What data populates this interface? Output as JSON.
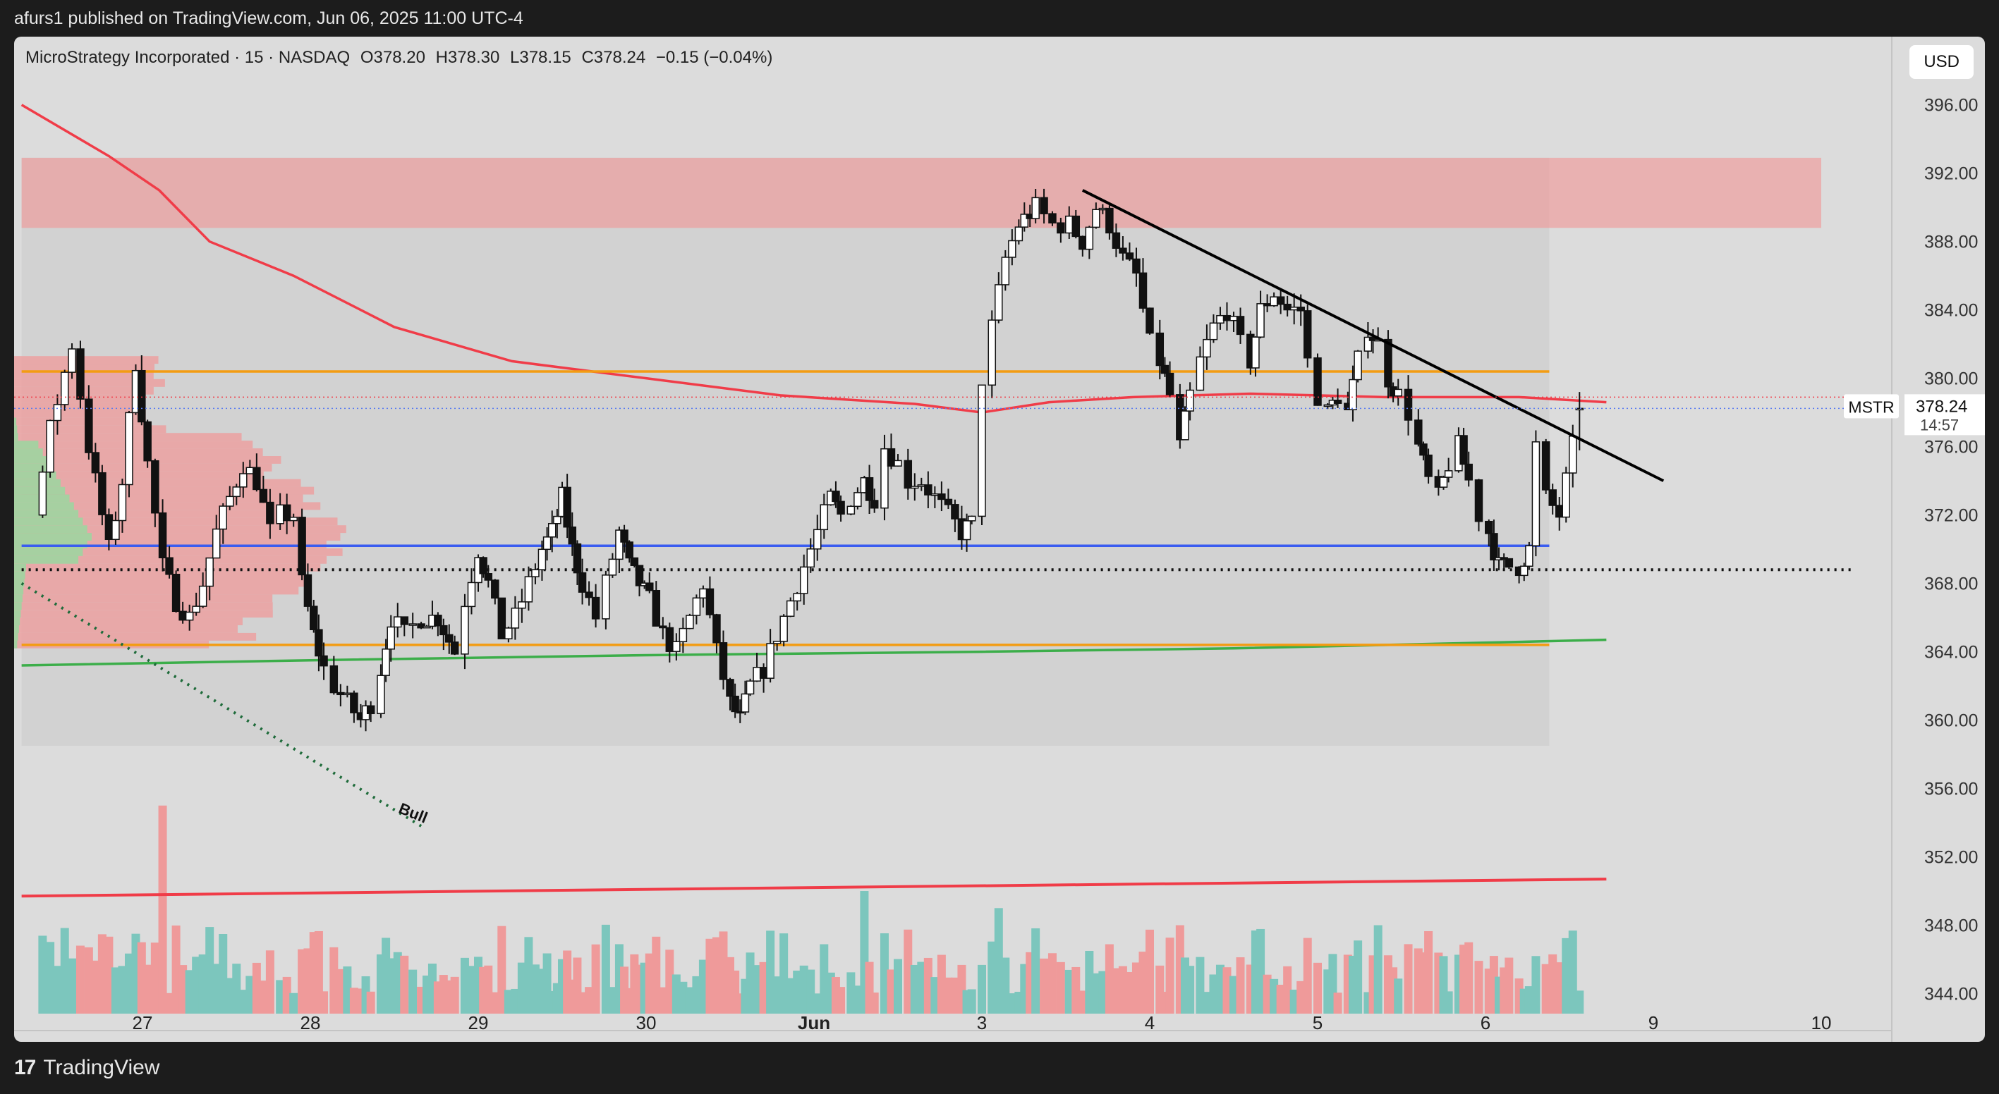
{
  "page": {
    "publisher_line": "afurs1 published on TradingView.com, Jun 06, 2025 11:00 UTC-4",
    "brand_label": "TradingView"
  },
  "legend": {
    "name": "MicroStrategy Incorporated · 15 · NASDAQ",
    "open": "O378.20",
    "high": "H378.30",
    "low": "L378.15",
    "close": "C378.24",
    "change": "−0.15 (−0.04%)"
  },
  "currency_button": "USD",
  "price_tag": {
    "symbol": "MSTR",
    "price": "378.24",
    "countdown": "14:57"
  },
  "colors": {
    "bull": "#ffffff",
    "bear": "#111111",
    "vol_up": "#7cc6bd",
    "vol_down": "#ef9a9a",
    "ma_red": "#f03c48",
    "ma_green": "#3cae4a",
    "blue_line": "#3a5cf0",
    "orange_line": "#f39c12",
    "supply_zone": "#ef9a9a"
  },
  "chart_data": {
    "type": "candlestick",
    "symbol": "MSTR",
    "interval": "15",
    "ylim": [
      342,
      399
    ],
    "y_ticks": [
      396,
      392,
      388,
      384,
      380,
      376,
      372,
      368,
      364,
      360,
      356,
      352,
      348,
      344
    ],
    "x_labels": [
      {
        "label": "27",
        "day": 0
      },
      {
        "label": "28",
        "day": 1
      },
      {
        "label": "29",
        "day": 2
      },
      {
        "label": "30",
        "day": 3
      },
      {
        "label": "Jun",
        "day": 4
      },
      {
        "label": "3",
        "day": 5
      },
      {
        "label": "4",
        "day": 6
      },
      {
        "label": "5",
        "day": 7
      },
      {
        "label": "6",
        "day": 8
      },
      {
        "label": "9",
        "day": 9
      },
      {
        "label": "10",
        "day": 10
      }
    ],
    "day_starts": {
      "26": -1,
      "27": 0,
      "28": 1,
      "29": 2,
      "30": 3,
      "Jun": 4,
      "3": 5,
      "4": 6,
      "5": 7,
      "6": 8,
      "9": 9,
      "10": 10,
      "11": 11
    },
    "price_path": [
      [
        -0.64,
        372
      ],
      [
        -0.55,
        377
      ],
      [
        -0.42,
        382
      ],
      [
        -0.32,
        376
      ],
      [
        -0.2,
        370
      ],
      [
        -0.12,
        374
      ],
      [
        -0.04,
        381
      ],
      [
        0.03,
        375
      ],
      [
        0.12,
        369
      ],
      [
        0.2,
        367
      ],
      [
        0.28,
        366
      ],
      [
        0.36,
        368
      ],
      [
        0.44,
        371
      ],
      [
        0.52,
        373
      ],
      [
        0.6,
        375
      ],
      [
        0.68,
        374
      ],
      [
        0.76,
        371
      ],
      [
        0.82,
        372
      ],
      [
        0.9,
        372
      ],
      [
        0.95,
        368
      ],
      [
        1.02,
        365
      ],
      [
        1.08,
        363
      ],
      [
        1.14,
        362
      ],
      [
        1.22,
        361
      ],
      [
        1.3,
        360
      ],
      [
        1.36,
        361
      ],
      [
        1.42,
        363
      ],
      [
        1.48,
        366
      ],
      [
        1.56,
        365
      ],
      [
        1.66,
        366
      ],
      [
        1.76,
        366
      ],
      [
        1.86,
        364
      ],
      [
        1.92,
        367
      ],
      [
        2,
        370
      ],
      [
        2.06,
        368
      ],
      [
        2.14,
        365
      ],
      [
        2.22,
        366
      ],
      [
        2.3,
        368
      ],
      [
        2.38,
        370
      ],
      [
        2.44,
        371
      ],
      [
        2.5,
        373
      ],
      [
        2.56,
        370
      ],
      [
        2.62,
        368
      ],
      [
        2.7,
        366
      ],
      [
        2.76,
        368
      ],
      [
        2.84,
        371
      ],
      [
        2.9,
        369
      ],
      [
        2.96,
        368
      ],
      [
        3.02,
        367
      ],
      [
        3.1,
        365
      ],
      [
        3.18,
        364
      ],
      [
        3.26,
        366
      ],
      [
        3.34,
        368
      ],
      [
        3.42,
        364
      ],
      [
        3.5,
        361
      ],
      [
        3.56,
        360
      ],
      [
        3.62,
        362
      ],
      [
        3.7,
        363
      ],
      [
        3.78,
        365
      ],
      [
        3.86,
        367
      ],
      [
        3.94,
        369
      ],
      [
        4.02,
        371
      ],
      [
        4.1,
        373
      ],
      [
        4.16,
        372
      ],
      [
        4.22,
        373
      ],
      [
        4.3,
        374
      ],
      [
        4.36,
        373
      ],
      [
        4.42,
        376
      ],
      [
        4.5,
        375
      ],
      [
        4.56,
        374
      ],
      [
        4.64,
        374
      ],
      [
        4.72,
        373
      ],
      [
        4.8,
        372
      ],
      [
        4.88,
        371
      ],
      [
        4.94,
        371.5
      ],
      [
        5,
        380
      ],
      [
        5.06,
        383
      ],
      [
        5.14,
        387
      ],
      [
        5.22,
        389
      ],
      [
        5.32,
        390
      ],
      [
        5.42,
        389
      ],
      [
        5.52,
        389
      ],
      [
        5.6,
        388
      ],
      [
        5.68,
        390
      ],
      [
        5.76,
        389
      ],
      [
        5.84,
        387
      ],
      [
        5.92,
        386
      ],
      [
        6,
        382
      ],
      [
        6.06,
        381
      ],
      [
        6.12,
        379
      ],
      [
        6.18,
        376
      ],
      [
        6.24,
        379
      ],
      [
        6.3,
        381
      ],
      [
        6.38,
        383
      ],
      [
        6.46,
        384
      ],
      [
        6.54,
        382
      ],
      [
        6.6,
        381
      ],
      [
        6.66,
        384
      ],
      [
        6.74,
        385
      ],
      [
        6.82,
        384
      ],
      [
        6.9,
        384
      ],
      [
        6.94,
        381
      ],
      [
        7,
        379
      ],
      [
        7.06,
        378
      ],
      [
        7.12,
        379
      ],
      [
        7.18,
        378
      ],
      [
        7.24,
        381
      ],
      [
        7.3,
        383
      ],
      [
        7.36,
        382
      ],
      [
        7.42,
        380
      ],
      [
        7.48,
        379
      ],
      [
        7.54,
        378
      ],
      [
        7.6,
        376
      ],
      [
        7.66,
        374
      ],
      [
        7.72,
        373
      ],
      [
        7.78,
        375
      ],
      [
        7.84,
        376
      ],
      [
        7.9,
        374
      ],
      [
        7.96,
        372
      ],
      [
        8.02,
        371
      ],
      [
        8.08,
        369
      ],
      [
        8.14,
        369
      ],
      [
        8.2,
        369
      ],
      [
        8.26,
        370
      ],
      [
        8.3,
        376
      ],
      [
        8.36,
        373
      ],
      [
        8.44,
        372
      ],
      [
        8.52,
        376
      ],
      [
        8.56,
        378.24
      ]
    ],
    "volume_spikes": [
      [
        0.12,
        355
      ],
      [
        4.3,
        350
      ],
      [
        5.1,
        349
      ],
      [
        6.18,
        348
      ],
      [
        7.38,
        348
      ],
      [
        7.9,
        347
      ]
    ],
    "lines": {
      "ma_red": [
        [
          -0.72,
          396
        ],
        [
          -0.2,
          393
        ],
        [
          0.1,
          391
        ],
        [
          0.4,
          388
        ],
        [
          0.9,
          386
        ],
        [
          1.5,
          383
        ],
        [
          2.2,
          381
        ],
        [
          3,
          380
        ],
        [
          3.8,
          379
        ],
        [
          4.6,
          378.5
        ],
        [
          5,
          378
        ],
        [
          5.4,
          378.6
        ],
        [
          5.9,
          378.9
        ],
        [
          6.6,
          379.1
        ],
        [
          7.4,
          378.9
        ],
        [
          8.2,
          378.9
        ],
        [
          8.72,
          378.6
        ]
      ],
      "ma_green": [
        [
          -0.72,
          363.2
        ],
        [
          1,
          363.5
        ],
        [
          3,
          363.8
        ],
        [
          5,
          364
        ],
        [
          6.5,
          364.2
        ],
        [
          8.3,
          364.6
        ],
        [
          8.72,
          364.7
        ]
      ],
      "volume_ma": [
        [
          -0.72,
          349.7
        ],
        [
          8.72,
          350.7
        ]
      ],
      "trendline": [
        [
          5.6,
          391
        ],
        [
          9.06,
          374
        ]
      ],
      "bull_trendline": [
        [
          -0.72,
          368
        ],
        [
          1.66,
          353.8
        ]
      ],
      "blue_level": {
        "price": 370.2,
        "from": -0.72,
        "to": 8.38
      },
      "orange_upper": {
        "price": 380.4,
        "from": -0.72,
        "to": 8.38
      },
      "orange_lower": {
        "price": 364.4,
        "from": -0.72,
        "to": 8.38
      },
      "dotted_level": {
        "price": 368.8,
        "from": -0.72,
        "to": 10.2
      }
    },
    "zones": {
      "supply": {
        "from": -0.72,
        "to": 10.0,
        "top": 392.9,
        "bottom": 388.8
      },
      "range_box": {
        "from": -0.72,
        "to": 8.38,
        "top": 392.9,
        "bottom": 358.5
      }
    },
    "annotations": [
      {
        "text": "Bull",
        "day": 1.52,
        "price": 354.6
      }
    ]
  }
}
